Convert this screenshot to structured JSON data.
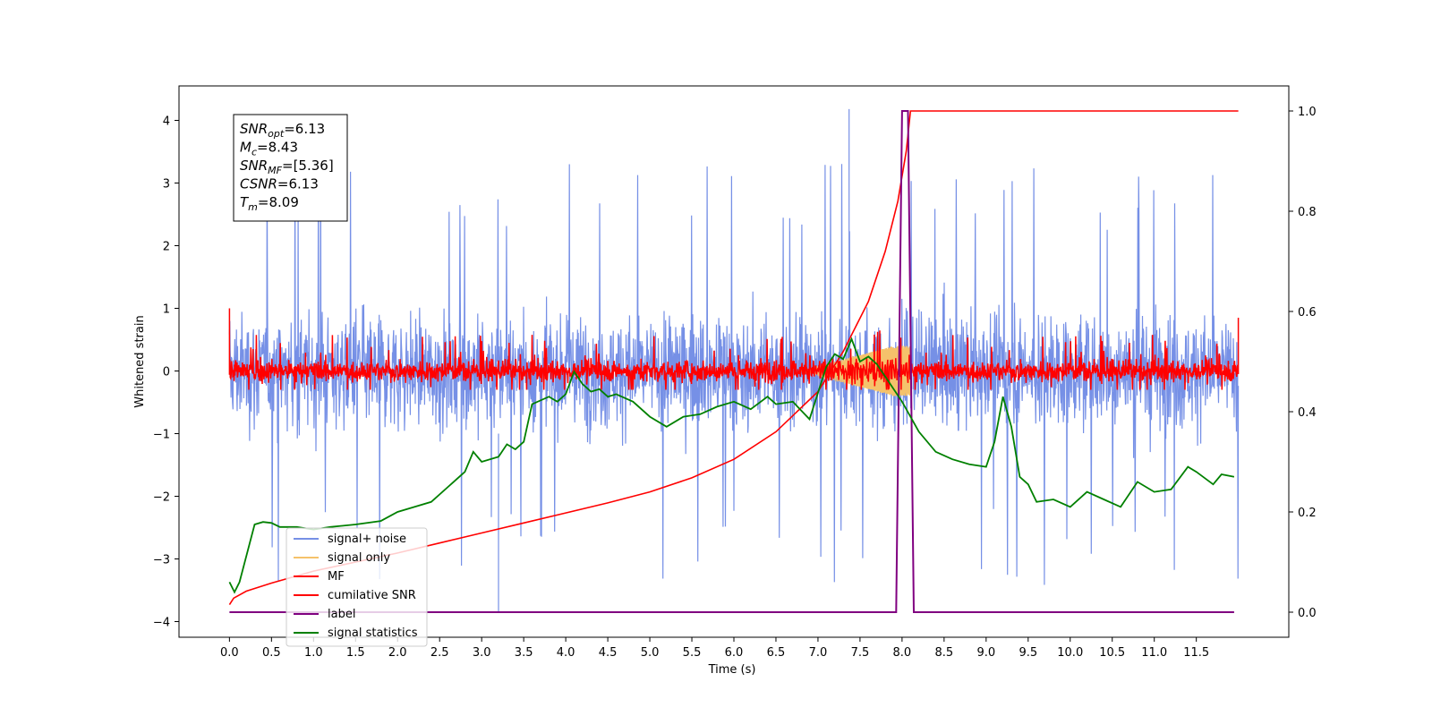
{
  "chart_data": {
    "type": "line",
    "xlabel": "Time (s)",
    "ylabel": "Whitened strain",
    "xlim": [
      -0.6,
      12.6
    ],
    "ylim": [
      -4.25,
      4.55
    ],
    "y2lim": [
      -0.05,
      1.05
    ],
    "x_ticks": [
      "0.0",
      "0.5",
      "1.0",
      "1.5",
      "2.0",
      "2.5",
      "3.0",
      "3.5",
      "4.0",
      "4.5",
      "5.0",
      "5.5",
      "6.0",
      "6.5",
      "7.0",
      "7.5",
      "8.0",
      "8.5",
      "9.0",
      "9.5",
      "10.0",
      "10.5",
      "11.0",
      "11.5"
    ],
    "y_ticks": [
      "4",
      "3",
      "2",
      "1",
      "0",
      "−1",
      "−2",
      "−3",
      "−4"
    ],
    "y2_ticks": [
      "1.0",
      "0.8",
      "0.6",
      "0.4",
      "0.2",
      "0.0"
    ],
    "stats": [
      {
        "base": "SNR",
        "sub": "opt",
        "value": "=6.13"
      },
      {
        "base": "M",
        "sub": "c",
        "value": "=8.43"
      },
      {
        "base": "SNR",
        "sub": "MF",
        "value": "=[5.36]"
      },
      {
        "base": "CSNR",
        "sub": "",
        "value": "=6.13"
      },
      {
        "base": "T",
        "sub": "m",
        "value": "=8.09"
      }
    ],
    "legend_position": "lower-left",
    "series": [
      {
        "name": "signal+ noise",
        "color": "#7690e6",
        "axis": "left",
        "t_range": [
          0.0,
          12.0
        ],
        "envelope": {
          "typical": 1.2,
          "max": 4.18,
          "min": -3.85
        }
      },
      {
        "name": "signal only",
        "color": "#f5c26b",
        "axis": "left",
        "t_range": [
          0.0,
          8.1
        ],
        "max_amplitude": 0.4
      },
      {
        "name": "MF",
        "color": "#ff0000",
        "axis": "left",
        "t_range": [
          0.0,
          12.0
        ],
        "envelope": {
          "typical": 0.28,
          "max": 1.0,
          "min": -0.3
        }
      },
      {
        "name": "cumilative SNR",
        "color": "#ff0000",
        "axis": "right",
        "points": [
          [
            0.0,
            0.015
          ],
          [
            0.05,
            0.028
          ],
          [
            0.2,
            0.042
          ],
          [
            0.5,
            0.058
          ],
          [
            1.0,
            0.082
          ],
          [
            1.5,
            0.1
          ],
          [
            2.0,
            0.118
          ],
          [
            2.5,
            0.138
          ],
          [
            3.0,
            0.158
          ],
          [
            3.5,
            0.178
          ],
          [
            4.0,
            0.198
          ],
          [
            4.5,
            0.218
          ],
          [
            5.0,
            0.24
          ],
          [
            5.5,
            0.268
          ],
          [
            6.0,
            0.305
          ],
          [
            6.5,
            0.36
          ],
          [
            7.0,
            0.44
          ],
          [
            7.3,
            0.52
          ],
          [
            7.6,
            0.62
          ],
          [
            7.8,
            0.72
          ],
          [
            7.95,
            0.82
          ],
          [
            8.05,
            0.92
          ],
          [
            8.1,
            1.0
          ],
          [
            12.0,
            1.0
          ]
        ]
      },
      {
        "name": "label",
        "color": "#800080",
        "axis": "right",
        "points": [
          [
            0.0,
            0.0
          ],
          [
            7.93,
            0.0
          ],
          [
            8.0,
            1.0
          ],
          [
            8.07,
            1.0
          ],
          [
            8.14,
            0.0
          ],
          [
            11.95,
            0.0
          ]
        ]
      },
      {
        "name": "signal statistics",
        "color": "#008000",
        "axis": "right",
        "points": [
          [
            0.0,
            0.06
          ],
          [
            0.06,
            0.04
          ],
          [
            0.12,
            0.06
          ],
          [
            0.3,
            0.175
          ],
          [
            0.4,
            0.18
          ],
          [
            0.5,
            0.178
          ],
          [
            0.6,
            0.17
          ],
          [
            0.8,
            0.17
          ],
          [
            1.0,
            0.165
          ],
          [
            1.2,
            0.17
          ],
          [
            1.5,
            0.175
          ],
          [
            1.8,
            0.182
          ],
          [
            2.0,
            0.2
          ],
          [
            2.2,
            0.21
          ],
          [
            2.4,
            0.22
          ],
          [
            2.6,
            0.25
          ],
          [
            2.8,
            0.28
          ],
          [
            2.9,
            0.32
          ],
          [
            3.0,
            0.3
          ],
          [
            3.2,
            0.31
          ],
          [
            3.3,
            0.335
          ],
          [
            3.4,
            0.325
          ],
          [
            3.5,
            0.34
          ],
          [
            3.6,
            0.415
          ],
          [
            3.8,
            0.43
          ],
          [
            3.9,
            0.42
          ],
          [
            4.0,
            0.435
          ],
          [
            4.1,
            0.48
          ],
          [
            4.2,
            0.455
          ],
          [
            4.3,
            0.44
          ],
          [
            4.4,
            0.445
          ],
          [
            4.5,
            0.43
          ],
          [
            4.6,
            0.435
          ],
          [
            4.8,
            0.42
          ],
          [
            5.0,
            0.39
          ],
          [
            5.2,
            0.37
          ],
          [
            5.4,
            0.39
          ],
          [
            5.6,
            0.395
          ],
          [
            5.8,
            0.41
          ],
          [
            6.0,
            0.42
          ],
          [
            6.2,
            0.405
          ],
          [
            6.4,
            0.43
          ],
          [
            6.5,
            0.415
          ],
          [
            6.7,
            0.42
          ],
          [
            6.9,
            0.385
          ],
          [
            7.1,
            0.49
          ],
          [
            7.2,
            0.515
          ],
          [
            7.3,
            0.505
          ],
          [
            7.4,
            0.545
          ],
          [
            7.5,
            0.5
          ],
          [
            7.6,
            0.51
          ],
          [
            7.7,
            0.495
          ],
          [
            7.8,
            0.47
          ],
          [
            8.0,
            0.42
          ],
          [
            8.2,
            0.36
          ],
          [
            8.4,
            0.32
          ],
          [
            8.6,
            0.305
          ],
          [
            8.8,
            0.295
          ],
          [
            9.0,
            0.29
          ],
          [
            9.1,
            0.34
          ],
          [
            9.2,
            0.43
          ],
          [
            9.3,
            0.37
          ],
          [
            9.4,
            0.27
          ],
          [
            9.5,
            0.255
          ],
          [
            9.6,
            0.22
          ],
          [
            9.8,
            0.225
          ],
          [
            10.0,
            0.21
          ],
          [
            10.2,
            0.24
          ],
          [
            10.4,
            0.225
          ],
          [
            10.6,
            0.21
          ],
          [
            10.8,
            0.26
          ],
          [
            11.0,
            0.24
          ],
          [
            11.2,
            0.245
          ],
          [
            11.4,
            0.29
          ],
          [
            11.5,
            0.28
          ],
          [
            11.7,
            0.255
          ],
          [
            11.8,
            0.275
          ],
          [
            11.95,
            0.27
          ]
        ]
      }
    ]
  }
}
